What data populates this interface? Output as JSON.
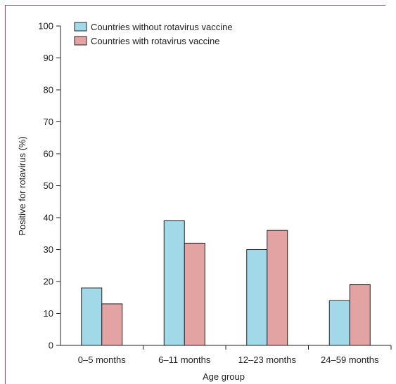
{
  "chart_data": {
    "type": "bar",
    "title": "",
    "xlabel": "Age group",
    "ylabel": "Positive for rotavirus (%)",
    "ylim": [
      0,
      100
    ],
    "yticks": [
      0,
      10,
      20,
      30,
      40,
      50,
      60,
      70,
      80,
      90,
      100
    ],
    "categories": [
      "0–5 months",
      "6–11 months",
      "12–23 months",
      "24–59 months"
    ],
    "series": [
      {
        "name": "Countries without rotavirus vaccine",
        "color": "#a2d9e9",
        "values": [
          18,
          39,
          30,
          14
        ]
      },
      {
        "name": "Countries with rotavirus vaccine",
        "color": "#e3a3a3",
        "values": [
          13,
          32,
          36,
          19
        ]
      }
    ],
    "legend": "top-left",
    "grid": false
  }
}
